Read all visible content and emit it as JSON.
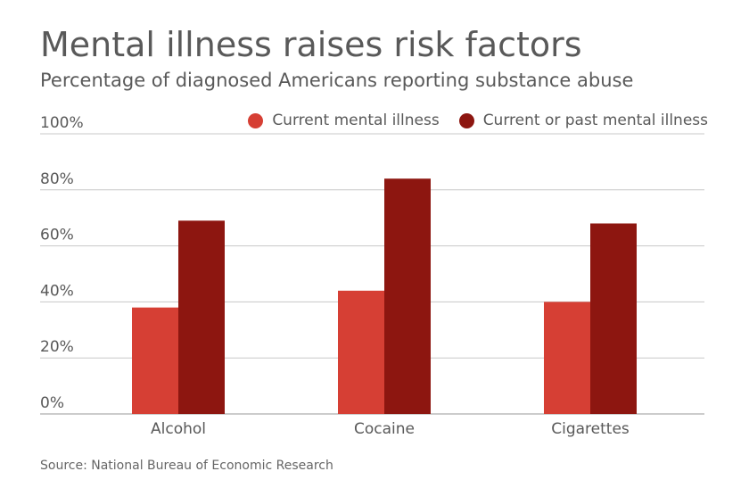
{
  "title": "Mental illness raises risk factors",
  "subtitle": "Percentage of diagnosed Americans reporting substance abuse",
  "source": "Source: National Bureau of Economic Research",
  "chart_data": {
    "type": "bar",
    "categories": [
      "Alcohol",
      "Cocaine",
      "Cigarettes"
    ],
    "series": [
      {
        "name": "Current mental illness",
        "color": "#d63f34",
        "values": [
          38,
          44,
          40
        ]
      },
      {
        "name": "Current or past mental illness",
        "color": "#8d1610",
        "values": [
          69,
          84,
          68
        ]
      }
    ],
    "ylim": [
      0,
      100
    ],
    "y_ticks": [
      "0%",
      "20%",
      "40%",
      "60%",
      "80%",
      "100%"
    ],
    "grid": true,
    "legend_position": "top-right"
  }
}
